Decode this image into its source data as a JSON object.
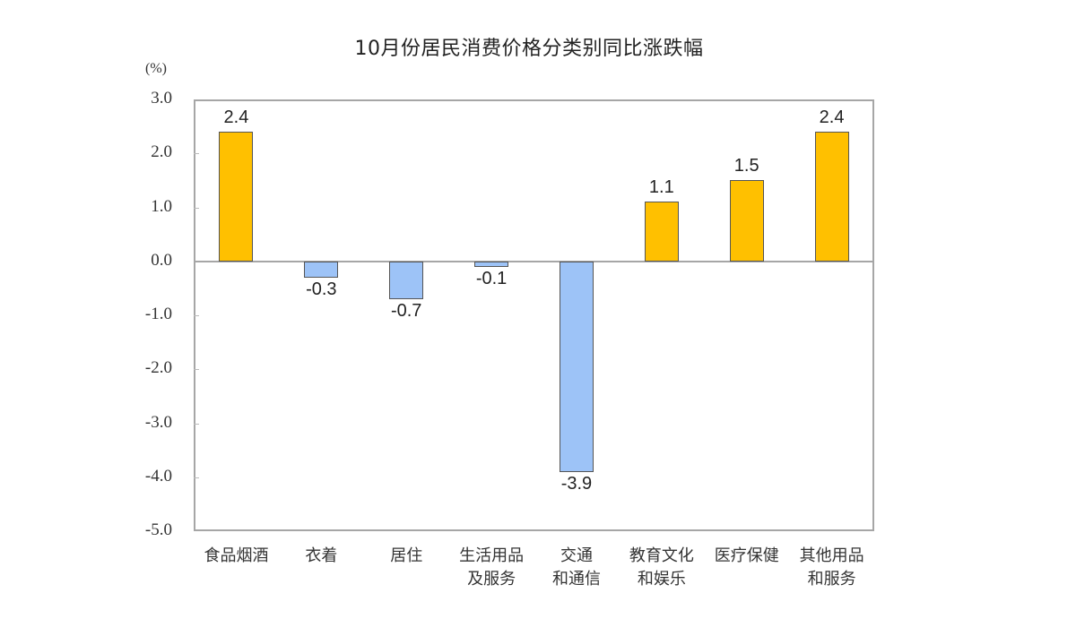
{
  "chart_data": {
    "type": "bar",
    "title": "10月份居民消费价格分类别同比涨跌幅",
    "unit": "(%)",
    "xlabel": "",
    "ylabel": "(%)",
    "ylim": [
      -5.0,
      3.0
    ],
    "yticks": [
      "3.0",
      "2.0",
      "1.0",
      "0.0",
      "-1.0",
      "-2.0",
      "-3.0",
      "-4.0",
      "-5.0"
    ],
    "grid": false,
    "legend": null,
    "categories": [
      [
        "食品烟酒"
      ],
      [
        "衣着"
      ],
      [
        "居住"
      ],
      [
        "生活用品",
        "及服务"
      ],
      [
        "交通",
        "和通信"
      ],
      [
        "教育文化",
        "和娱乐"
      ],
      [
        "医疗保健"
      ],
      [
        "其他用品",
        "和服务"
      ]
    ],
    "values": [
      2.4,
      -0.3,
      -0.7,
      -0.1,
      -3.9,
      1.1,
      1.5,
      2.4
    ],
    "value_labels": [
      "2.4",
      "-0.3",
      "-0.7",
      "-0.1",
      "-3.9",
      "1.1",
      "1.5",
      "2.4"
    ],
    "colors": {
      "positive": "#ffc000",
      "negative": "#9dc3f7"
    }
  }
}
